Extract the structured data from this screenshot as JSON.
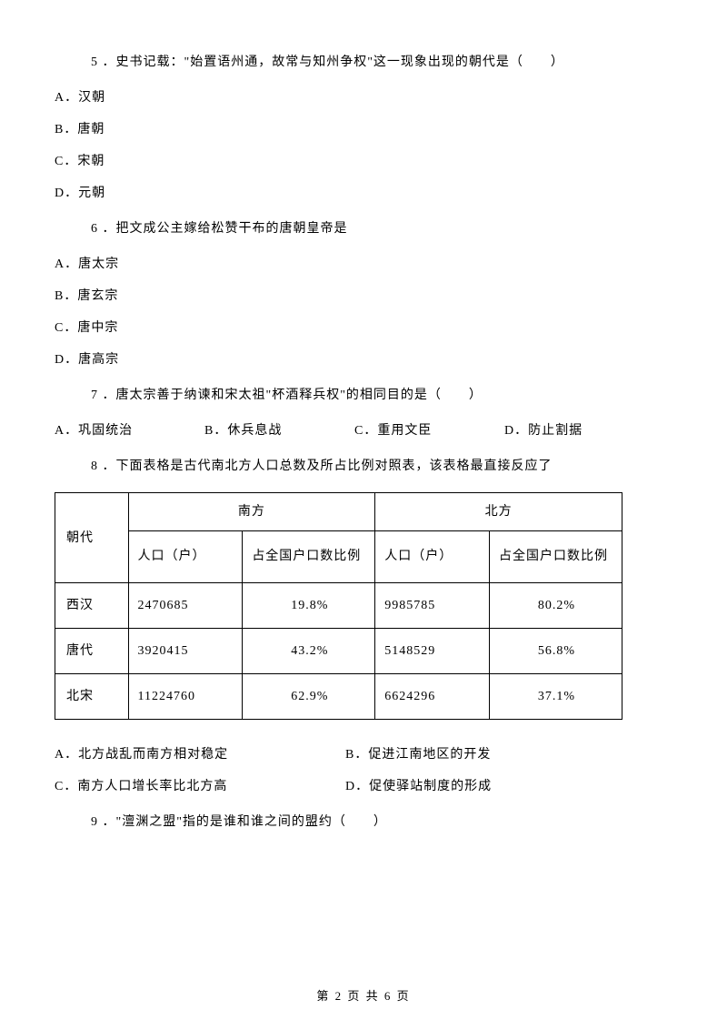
{
  "q5": {
    "stem": "5 ．史书记载：\"始置语州通，故常与知州争权\"这一现象出现的朝代是（　　）",
    "a": "A．汉朝",
    "b": "B．唐朝",
    "c": "C．宋朝",
    "d": "D．元朝"
  },
  "q6": {
    "stem": "6 ．把文成公主嫁给松赞干布的唐朝皇帝是",
    "a": "A．唐太宗",
    "b": "B．唐玄宗",
    "c": "C．唐中宗",
    "d": "D．唐高宗"
  },
  "q7": {
    "stem": "7 ．唐太宗善于纳谏和宋太祖\"杯酒释兵权\"的相同目的是（　　）",
    "a": "A．巩固统治",
    "b": "B．休兵息战",
    "c": "C．重用文臣",
    "d": "D．防止割据"
  },
  "q8": {
    "stem": "8 ．下面表格是古代南北方人口总数及所占比例对照表，该表格最直接反应了",
    "table": {
      "col_dynasty": "朝代",
      "region_south": "南方",
      "region_north": "北方",
      "col_pop": "人口（户）",
      "col_pct": "占全国户口数比例",
      "rows": [
        {
          "dynasty": "西汉",
          "s_pop": "2470685",
          "s_pct": "19.8%",
          "n_pop": "9985785",
          "n_pct": "80.2%"
        },
        {
          "dynasty": "唐代",
          "s_pop": "3920415",
          "s_pct": "43.2%",
          "n_pop": "5148529",
          "n_pct": "56.8%"
        },
        {
          "dynasty": "北宋",
          "s_pop": "11224760",
          "s_pct": "62.9%",
          "n_pop": "6624296",
          "n_pct": "37.1%"
        }
      ]
    },
    "a": "A．北方战乱而南方相对稳定",
    "b": "B．促进江南地区的开发",
    "c": "C．南方人口增长率比北方高",
    "d": "D．促使驿站制度的形成"
  },
  "q9": {
    "stem": "9 ．\"澶渊之盟\"指的是谁和谁之间的盟约（　　）"
  },
  "footer": "第 2 页 共 6 页",
  "colors": {
    "background": "#ffffff",
    "text": "#000000",
    "border": "#000000"
  },
  "typography": {
    "font_family": "SimSun",
    "body_fontsize": 14
  }
}
